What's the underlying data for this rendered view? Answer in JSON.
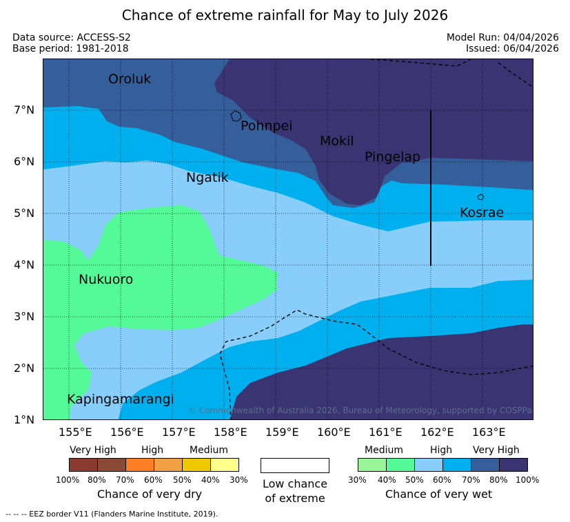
{
  "title": "Chance of extreme rainfall for May to July 2026",
  "meta": {
    "data_source": "Data source: ACCESS-S2",
    "base_period": "Base period: 1981-2018",
    "model_run": "Model Run: 04/04/2026",
    "issued": "Issued: 06/04/2026"
  },
  "map": {
    "places": [
      "Oroluk",
      "Pohnpei",
      "Mokil",
      "Pingelap",
      "Ngatik",
      "Kosrae",
      "Nukuoro",
      "Kapingamarangi"
    ],
    "copyright": "© Commonwealth of Australia 2026, Bureau of Meteorology, supported by COSPPac",
    "lat_ticks": [
      "7°N",
      "6°N",
      "5°N",
      "4°N",
      "3°N",
      "2°N",
      "1°N"
    ],
    "lon_ticks": [
      "155°E",
      "156°E",
      "157°E",
      "158°E",
      "159°E",
      "160°E",
      "161°E",
      "162°E",
      "163°E"
    ]
  },
  "legend": {
    "dry": {
      "headers": [
        "Very High",
        "High",
        "Medium"
      ],
      "pcts": [
        "100%",
        "80%",
        "70%",
        "60%",
        "50%",
        "40%",
        "30%"
      ],
      "caption": "Chance of very dry",
      "colors": [
        "#8b3a2f",
        "#8a4a35",
        "#ff7f24",
        "#f0a040",
        "#eec900",
        "#ffff8c"
      ]
    },
    "low": {
      "line1": "Low chance",
      "line2": "of extreme"
    },
    "wet": {
      "headers": [
        "Medium",
        "High",
        "Very High"
      ],
      "pcts": [
        "30%",
        "40%",
        "50%",
        "60%",
        "70%",
        "80%",
        "100%"
      ],
      "caption": "Chance of very wet",
      "colors": [
        "#98f598",
        "#54fa98",
        "#87cefa",
        "#00b0ee",
        "#345f9a",
        "#3a3572"
      ]
    }
  },
  "footer": "--  --  -- EEZ border V11 (Flanders Marine Institute, 2019)."
}
